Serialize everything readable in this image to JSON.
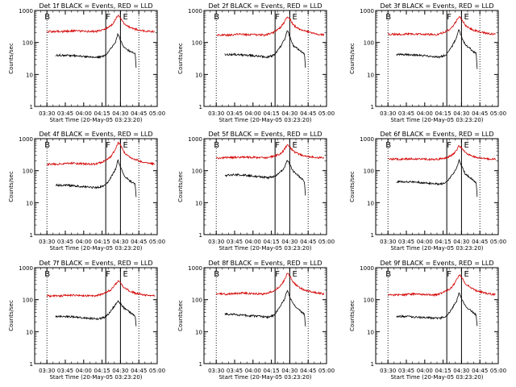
{
  "colors": {
    "events": "#000000",
    "lld": "#d40000",
    "axis": "#000000",
    "background": "#ffffff"
  },
  "chart_data": [
    {
      "type": "line",
      "title": "Det 1f BLACK = Events, RED = LLD",
      "xlabel": "Start Time (20-May-05 03:23:20)",
      "ylabel": "Counts/sec",
      "x_ticks": [
        "03:30",
        "03:45",
        "04:00",
        "04:15",
        "04:30",
        "04:45",
        "05:00"
      ],
      "y_ticks": [
        "1",
        "10",
        "100",
        "1000"
      ],
      "y_scale": "log",
      "ylim": [
        1,
        1000
      ],
      "markers": [
        "B",
        "F",
        "E"
      ],
      "series": [
        {
          "color": "black",
          "x": [
            "03:37",
            "03:45",
            "03:55",
            "04:05",
            "04:12",
            "04:17",
            "04:20",
            "04:23",
            "04:26",
            "04:28",
            "04:30",
            "04:33",
            "04:37",
            "04:40",
            "04:42",
            "04:43"
          ],
          "y": [
            40,
            40,
            38,
            35,
            34,
            38,
            50,
            70,
            100,
            190,
            120,
            70,
            55,
            48,
            45,
            12
          ]
        },
        {
          "color": "red",
          "x": [
            "03:30",
            "03:40",
            "03:50",
            "04:00",
            "04:10",
            "04:17",
            "04:22",
            "04:25",
            "04:28",
            "04:30",
            "04:33",
            "04:37",
            "04:42",
            "04:50",
            "04:58"
          ],
          "y": [
            220,
            220,
            230,
            225,
            220,
            260,
            330,
            450,
            700,
            600,
            380,
            300,
            260,
            225,
            220
          ]
        }
      ]
    },
    {
      "type": "line",
      "title": "Det 2f BLACK = Events, RED = LLD",
      "xlabel": "Start Time (20-May-05 03:23:20)",
      "ylabel": "Counts/sec",
      "x_ticks": [
        "03:30",
        "03:45",
        "04:00",
        "04:15",
        "04:30",
        "04:45",
        "05:00"
      ],
      "y_ticks": [
        "1",
        "10",
        "100",
        "1000"
      ],
      "y_scale": "log",
      "ylim": [
        1,
        1000
      ],
      "markers": [
        "B",
        "F",
        "E"
      ],
      "series": [
        {
          "color": "black",
          "x": [
            "03:37",
            "03:45",
            "03:55",
            "04:05",
            "04:12",
            "04:17",
            "04:20",
            "04:23",
            "04:26",
            "04:28",
            "04:30",
            "04:33",
            "04:37",
            "04:40",
            "04:42",
            "04:43"
          ],
          "y": [
            42,
            42,
            40,
            37,
            35,
            40,
            55,
            80,
            130,
            250,
            150,
            80,
            60,
            50,
            45,
            12
          ]
        },
        {
          "color": "red",
          "x": [
            "03:30",
            "03:40",
            "03:50",
            "04:00",
            "04:10",
            "04:17",
            "04:22",
            "04:25",
            "04:28",
            "04:30",
            "04:33",
            "04:37",
            "04:42",
            "04:50",
            "04:58"
          ],
          "y": [
            170,
            170,
            180,
            175,
            170,
            210,
            280,
            400,
            650,
            550,
            350,
            270,
            230,
            190,
            170
          ]
        }
      ]
    },
    {
      "type": "line",
      "title": "Det 3f BLACK = Events, RED = LLD",
      "xlabel": "Start Time (20-May-05 03:23:20)",
      "ylabel": "Counts/sec",
      "x_ticks": [
        "03:30",
        "03:45",
        "04:00",
        "04:15",
        "04:30",
        "04:45",
        "05:00"
      ],
      "y_ticks": [
        "1",
        "10",
        "100",
        "1000"
      ],
      "y_scale": "log",
      "ylim": [
        1,
        1000
      ],
      "markers": [
        "B",
        "F",
        "E"
      ],
      "series": [
        {
          "color": "black",
          "x": [
            "03:37",
            "03:45",
            "03:55",
            "04:05",
            "04:12",
            "04:17",
            "04:20",
            "04:23",
            "04:26",
            "04:28",
            "04:30",
            "04:33",
            "04:37",
            "04:40",
            "04:42",
            "04:43"
          ],
          "y": [
            42,
            42,
            40,
            37,
            35,
            40,
            55,
            85,
            140,
            260,
            150,
            85,
            65,
            50,
            45,
            12
          ]
        },
        {
          "color": "red",
          "x": [
            "03:30",
            "03:40",
            "03:50",
            "04:00",
            "04:10",
            "04:17",
            "04:22",
            "04:25",
            "04:28",
            "04:30",
            "04:33",
            "04:37",
            "04:42",
            "04:50",
            "04:58"
          ],
          "y": [
            180,
            180,
            185,
            180,
            175,
            215,
            290,
            420,
            650,
            550,
            350,
            270,
            230,
            195,
            180
          ]
        }
      ]
    },
    {
      "type": "line",
      "title": "Det 4f BLACK = Events, RED = LLD",
      "xlabel": "Start Time (20-May-05 03:23:20)",
      "ylabel": "Counts/sec",
      "x_ticks": [
        "03:30",
        "03:45",
        "04:00",
        "04:15",
        "04:30",
        "04:45",
        "05:00"
      ],
      "y_ticks": [
        "1",
        "10",
        "100",
        "1000"
      ],
      "y_scale": "log",
      "ylim": [
        1,
        1000
      ],
      "markers": [
        "B",
        "F",
        "E"
      ],
      "series": [
        {
          "color": "black",
          "x": [
            "03:37",
            "03:45",
            "03:55",
            "04:05",
            "04:12",
            "04:17",
            "04:20",
            "04:23",
            "04:26",
            "04:28",
            "04:30",
            "04:33",
            "04:37",
            "04:40",
            "04:42",
            "04:43"
          ],
          "y": [
            35,
            35,
            33,
            30,
            30,
            34,
            45,
            70,
            110,
            220,
            130,
            70,
            50,
            42,
            38,
            12
          ]
        },
        {
          "color": "red",
          "x": [
            "03:30",
            "03:40",
            "03:50",
            "04:00",
            "04:10",
            "04:17",
            "04:22",
            "04:25",
            "04:28",
            "04:30",
            "04:33",
            "04:37",
            "04:42",
            "04:50",
            "04:58"
          ],
          "y": [
            160,
            160,
            170,
            165,
            160,
            200,
            270,
            400,
            750,
            650,
            380,
            270,
            220,
            180,
            160
          ]
        }
      ]
    },
    {
      "type": "line",
      "title": "Det 5f BLACK = Events, RED = LLD",
      "xlabel": "Start Time (20-May-05 03:23:20)",
      "ylabel": "Counts/sec",
      "x_ticks": [
        "03:30",
        "03:45",
        "04:00",
        "04:15",
        "04:30",
        "04:45",
        "05:00"
      ],
      "y_ticks": [
        "1",
        "10",
        "100",
        "1000"
      ],
      "y_scale": "log",
      "ylim": [
        1,
        1000
      ],
      "markers": [
        "B",
        "F",
        "E"
      ],
      "series": [
        {
          "color": "black",
          "x": [
            "03:37",
            "03:45",
            "03:55",
            "04:05",
            "04:12",
            "04:17",
            "04:20",
            "04:23",
            "04:26",
            "04:28",
            "04:30",
            "04:33",
            "04:37",
            "04:40",
            "04:42",
            "04:43"
          ],
          "y": [
            70,
            75,
            72,
            65,
            60,
            65,
            75,
            95,
            130,
            220,
            150,
            95,
            70,
            55,
            45,
            12
          ]
        },
        {
          "color": "red",
          "x": [
            "03:30",
            "03:40",
            "03:50",
            "04:00",
            "04:10",
            "04:17",
            "04:22",
            "04:25",
            "04:28",
            "04:30",
            "04:33",
            "04:37",
            "04:42",
            "04:50",
            "04:58"
          ],
          "y": [
            250,
            255,
            265,
            260,
            250,
            280,
            330,
            420,
            650,
            560,
            400,
            330,
            290,
            260,
            250
          ]
        }
      ]
    },
    {
      "type": "line",
      "title": "Det 6f BLACK = Events, RED = LLD",
      "xlabel": "Start Time (20-May-05 03:23:20)",
      "ylabel": "Counts/sec",
      "x_ticks": [
        "03:30",
        "03:45",
        "04:00",
        "04:15",
        "04:30",
        "04:45",
        "05:00"
      ],
      "y_ticks": [
        "1",
        "10",
        "100",
        "1000"
      ],
      "y_scale": "log",
      "ylim": [
        1,
        1000
      ],
      "markers": [
        "B",
        "F",
        "E"
      ],
      "series": [
        {
          "color": "black",
          "x": [
            "03:37",
            "03:45",
            "03:55",
            "04:05",
            "04:12",
            "04:17",
            "04:20",
            "04:23",
            "04:26",
            "04:28",
            "04:30",
            "04:33",
            "04:37",
            "04:40",
            "04:42",
            "04:43"
          ],
          "y": [
            45,
            45,
            43,
            40,
            38,
            42,
            55,
            80,
            120,
            220,
            140,
            80,
            60,
            48,
            42,
            12
          ]
        },
        {
          "color": "red",
          "x": [
            "03:30",
            "03:40",
            "03:50",
            "04:00",
            "04:10",
            "04:17",
            "04:22",
            "04:25",
            "04:28",
            "04:30",
            "04:33",
            "04:37",
            "04:42",
            "04:50",
            "04:58"
          ],
          "y": [
            230,
            230,
            235,
            230,
            225,
            250,
            300,
            380,
            600,
            520,
            370,
            300,
            260,
            235,
            230
          ]
        }
      ]
    },
    {
      "type": "line",
      "title": "Det 7f BLACK = Events, RED = LLD",
      "xlabel": "Start Time (20-May-05 03:23:20)",
      "ylabel": "Counts/sec",
      "x_ticks": [
        "03:30",
        "03:45",
        "04:00",
        "04:15",
        "04:30",
        "04:45",
        "05:00"
      ],
      "y_ticks": [
        "1",
        "10",
        "100",
        "1000"
      ],
      "y_scale": "log",
      "ylim": [
        1,
        1000
      ],
      "markers": [
        "B",
        "F",
        "E"
      ],
      "series": [
        {
          "color": "black",
          "x": [
            "03:37",
            "03:45",
            "03:55",
            "04:05",
            "04:12",
            "04:17",
            "04:20",
            "04:23",
            "04:26",
            "04:28",
            "04:30",
            "04:33",
            "04:37",
            "04:40",
            "04:42",
            "04:43"
          ],
          "y": [
            30,
            30,
            28,
            26,
            25,
            28,
            35,
            50,
            70,
            90,
            75,
            55,
            42,
            35,
            30,
            12
          ]
        },
        {
          "color": "red",
          "x": [
            "03:30",
            "03:40",
            "03:50",
            "04:00",
            "04:10",
            "04:17",
            "04:22",
            "04:25",
            "04:28",
            "04:30",
            "04:33",
            "04:37",
            "04:42",
            "04:50",
            "04:58"
          ],
          "y": [
            130,
            130,
            140,
            135,
            130,
            160,
            200,
            270,
            380,
            330,
            240,
            190,
            160,
            140,
            130
          ]
        }
      ]
    },
    {
      "type": "line",
      "title": "Det 8f BLACK = Events, RED = LLD",
      "xlabel": "Start Time (20-May-05 03:23:20)",
      "ylabel": "Counts/sec",
      "x_ticks": [
        "03:30",
        "03:45",
        "04:00",
        "04:15",
        "04:30",
        "04:45",
        "05:00"
      ],
      "y_ticks": [
        "1",
        "10",
        "100",
        "1000"
      ],
      "y_scale": "log",
      "ylim": [
        1,
        1000
      ],
      "markers": [
        "B",
        "F",
        "E"
      ],
      "series": [
        {
          "color": "black",
          "x": [
            "03:37",
            "03:45",
            "03:55",
            "04:05",
            "04:12",
            "04:17",
            "04:20",
            "04:23",
            "04:26",
            "04:28",
            "04:30",
            "04:33",
            "04:37",
            "04:40",
            "04:42",
            "04:43"
          ],
          "y": [
            35,
            34,
            32,
            30,
            28,
            32,
            45,
            70,
            110,
            200,
            120,
            70,
            50,
            40,
            35,
            12
          ]
        },
        {
          "color": "red",
          "x": [
            "03:30",
            "03:40",
            "03:50",
            "04:00",
            "04:10",
            "04:17",
            "04:22",
            "04:25",
            "04:28",
            "04:30",
            "04:33",
            "04:37",
            "04:42",
            "04:50",
            "04:58"
          ],
          "y": [
            150,
            150,
            160,
            155,
            150,
            190,
            260,
            380,
            650,
            560,
            350,
            250,
            200,
            170,
            150
          ]
        }
      ]
    },
    {
      "type": "line",
      "title": "Det 9f BLACK = Events, RED = LLD",
      "xlabel": "Start Time (20-May-05 03:23:20)",
      "ylabel": "Counts/sec",
      "x_ticks": [
        "03:30",
        "03:45",
        "04:00",
        "04:15",
        "04:30",
        "04:45",
        "05:00"
      ],
      "y_ticks": [
        "1",
        "10",
        "100",
        "1000"
      ],
      "y_scale": "log",
      "ylim": [
        1,
        1000
      ],
      "markers": [
        "B",
        "F",
        "E"
      ],
      "series": [
        {
          "color": "black",
          "x": [
            "03:37",
            "03:45",
            "03:55",
            "04:05",
            "04:12",
            "04:17",
            "04:20",
            "04:23",
            "04:26",
            "04:28",
            "04:30",
            "04:33",
            "04:37",
            "04:40",
            "04:42",
            "04:43"
          ],
          "y": [
            30,
            30,
            28,
            27,
            26,
            30,
            40,
            60,
            90,
            170,
            110,
            65,
            48,
            38,
            33,
            12
          ]
        },
        {
          "color": "red",
          "x": [
            "03:30",
            "03:40",
            "03:50",
            "04:00",
            "04:10",
            "04:17",
            "04:22",
            "04:25",
            "04:28",
            "04:30",
            "04:33",
            "04:37",
            "04:42",
            "04:50",
            "04:58"
          ],
          "y": [
            140,
            140,
            150,
            145,
            140,
            180,
            240,
            350,
            600,
            520,
            330,
            240,
            190,
            160,
            140
          ]
        }
      ]
    }
  ]
}
